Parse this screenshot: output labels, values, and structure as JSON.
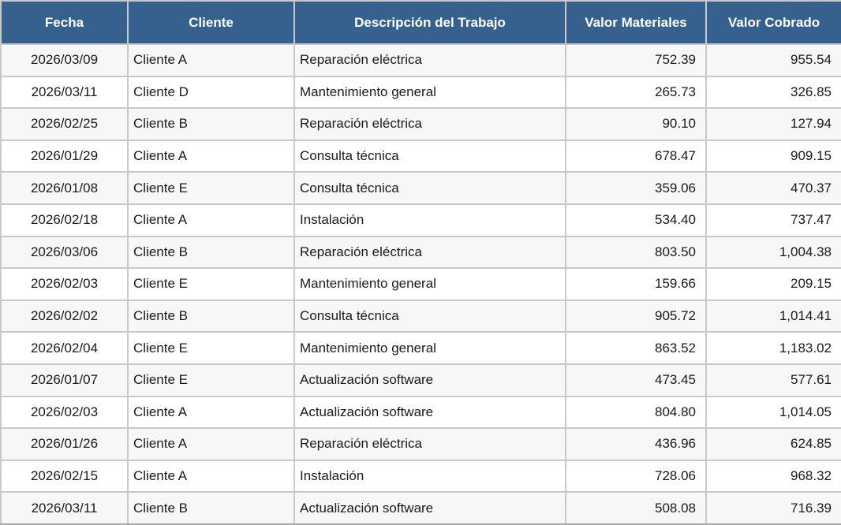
{
  "colors": {
    "header_bg": "#36618E",
    "header_text": "#FFFFFF",
    "row_bg": "#FFFFFF",
    "row_alt_bg": "#F7F7F7",
    "grid_line": "#C9C9C9",
    "outer_bottom_border": "#A9A9A9",
    "body_text": "#1A1A1A"
  },
  "chart_data": {
    "type": "table",
    "title": "",
    "legend_position": "none",
    "grid": true,
    "columns": [
      {
        "key": "fecha",
        "label": "Fecha",
        "align": "center"
      },
      {
        "key": "cliente",
        "label": "Cliente",
        "align": "left"
      },
      {
        "key": "descripcion",
        "label": "Descripción del Trabajo",
        "align": "left"
      },
      {
        "key": "valor_materiales",
        "label": "Valor Materiales",
        "align": "right"
      },
      {
        "key": "valor_cobrado",
        "label": "Valor Cobrado",
        "align": "right"
      }
    ],
    "rows": [
      [
        "2026/03/09",
        "Cliente A",
        "Reparación eléctrica",
        "752.39",
        "955.54"
      ],
      [
        "2026/03/11",
        "Cliente D",
        "Mantenimiento general",
        "265.73",
        "326.85"
      ],
      [
        "2026/02/25",
        "Cliente B",
        "Reparación eléctrica",
        "90.10",
        "127.94"
      ],
      [
        "2026/01/29",
        "Cliente A",
        "Consulta técnica",
        "678.47",
        "909.15"
      ],
      [
        "2026/01/08",
        "Cliente E",
        "Consulta técnica",
        "359.06",
        "470.37"
      ],
      [
        "2026/02/18",
        "Cliente A",
        "Instalación",
        "534.40",
        "737.47"
      ],
      [
        "2026/03/06",
        "Cliente B",
        "Reparación eléctrica",
        "803.50",
        "1,004.38"
      ],
      [
        "2026/02/03",
        "Cliente E",
        "Mantenimiento general",
        "159.66",
        "209.15"
      ],
      [
        "2026/02/02",
        "Cliente B",
        "Consulta técnica",
        "905.72",
        "1,014.41"
      ],
      [
        "2026/02/04",
        "Cliente E",
        "Mantenimiento general",
        "863.52",
        "1,183.02"
      ],
      [
        "2026/01/07",
        "Cliente E",
        "Actualización software",
        "473.45",
        "577.61"
      ],
      [
        "2026/02/03",
        "Cliente A",
        "Actualización software",
        "804.80",
        "1,014.05"
      ],
      [
        "2026/01/26",
        "Cliente A",
        "Reparación eléctrica",
        "436.96",
        "624.85"
      ],
      [
        "2026/02/15",
        "Cliente A",
        "Instalación",
        "728.06",
        "968.32"
      ],
      [
        "2026/03/11",
        "Cliente B",
        "Actualización software",
        "508.08",
        "716.39"
      ]
    ]
  }
}
